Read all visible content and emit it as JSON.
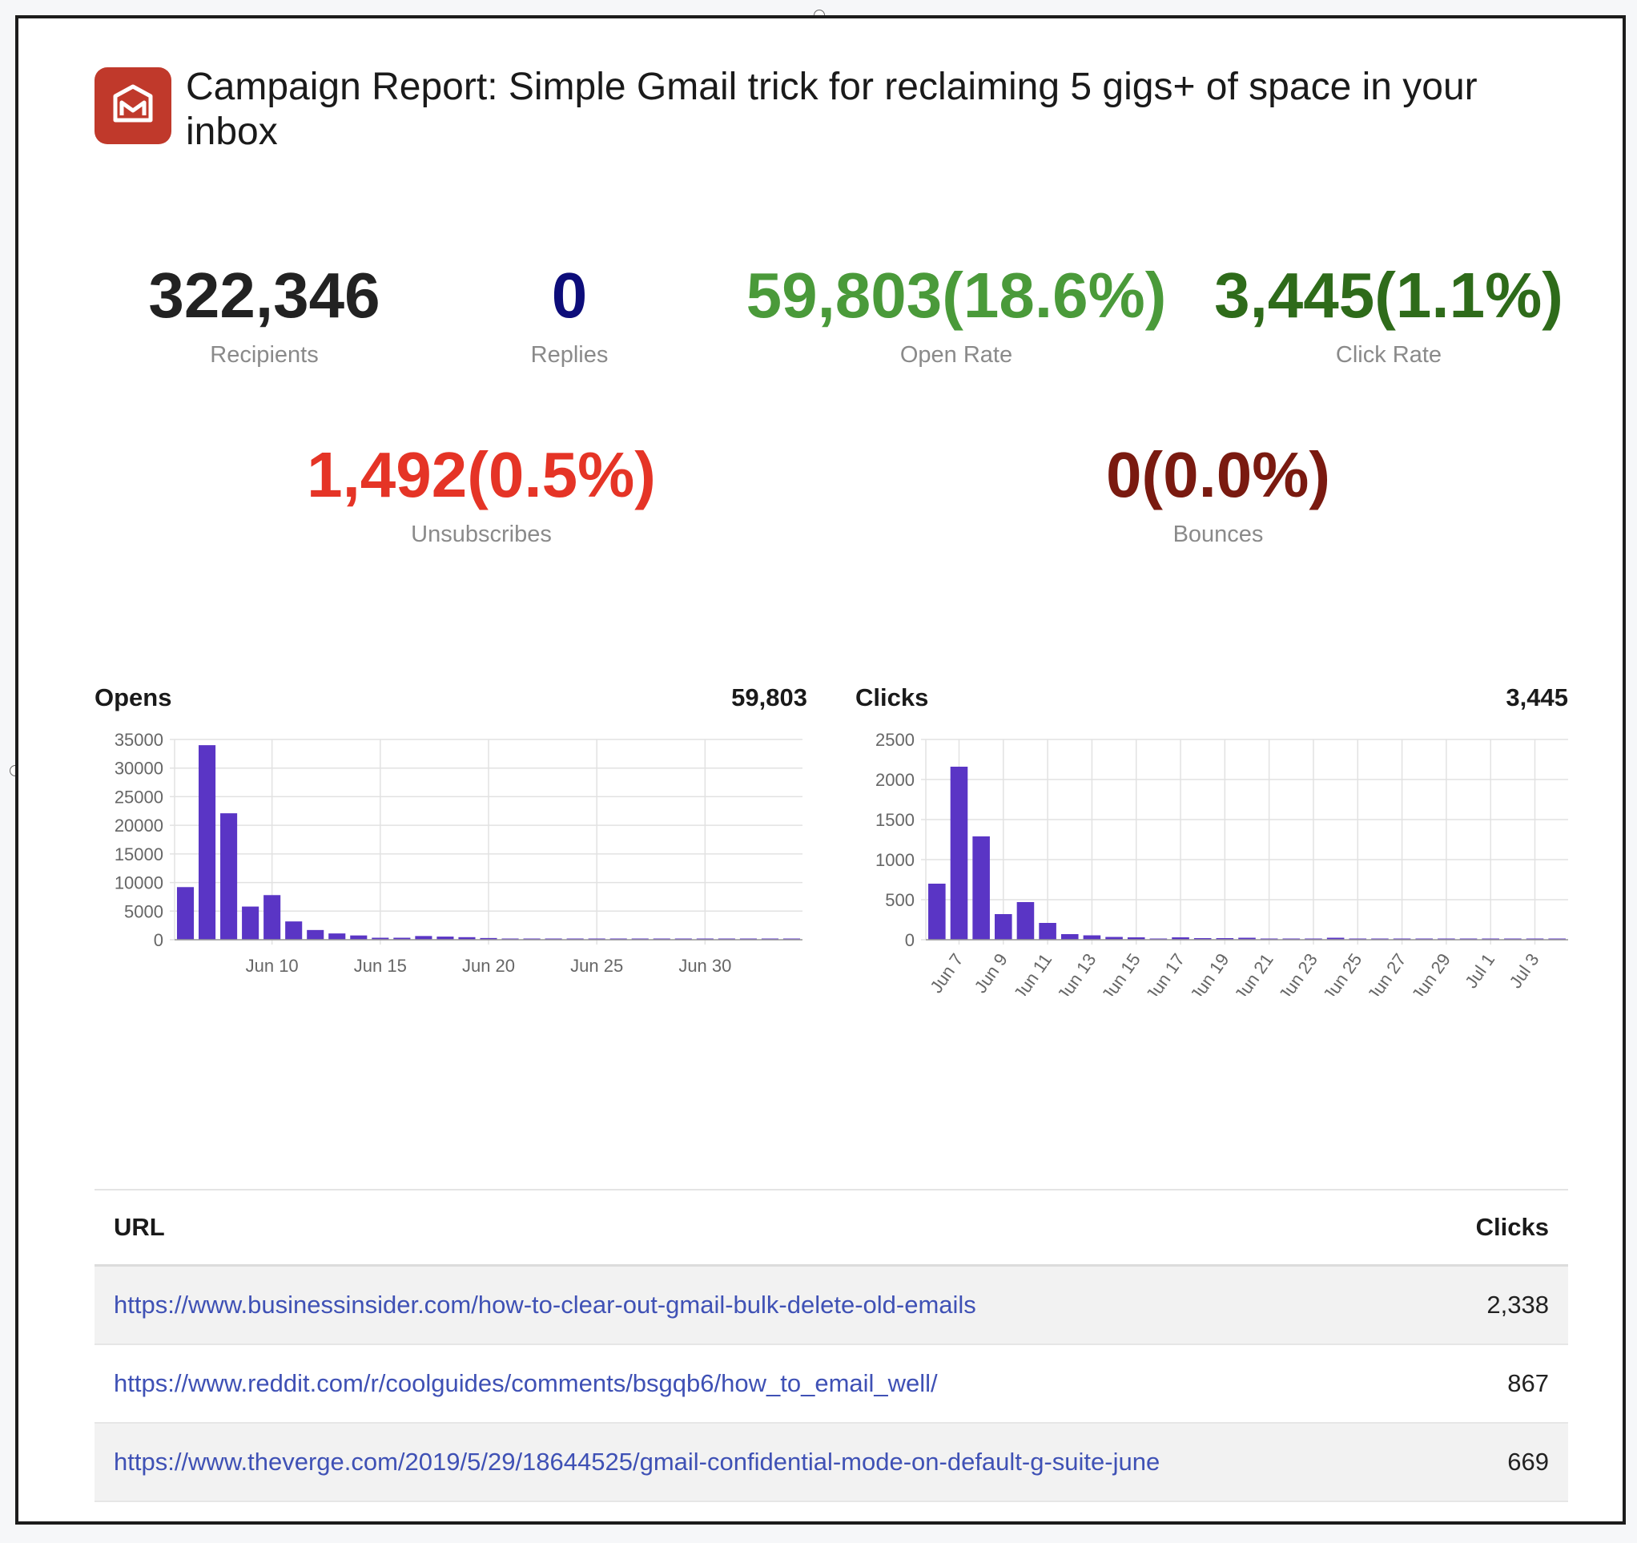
{
  "report": {
    "title": "Campaign Report: Simple Gmail trick for reclaiming 5 gigs+ of space in your inbox",
    "logo_icon": "mailmeteor-logo-icon",
    "brand_color": "#c0392b"
  },
  "stats": {
    "recipients": {
      "value": "322,346",
      "label": "Recipients",
      "color": "#222222"
    },
    "replies": {
      "value": "0",
      "label": "Replies",
      "color": "#0d0d7a"
    },
    "open_rate": {
      "value": "59,803(18.6%)",
      "label": "Open Rate",
      "color": "#4a9a3a"
    },
    "click_rate": {
      "value": "3,445(1.1%)",
      "label": "Click Rate",
      "color": "#2e6b1a"
    },
    "unsubscribes": {
      "value": "1,492(0.5%)",
      "label": "Unsubscribes",
      "color": "#e53426"
    },
    "bounces": {
      "value": "0(0.0%)",
      "label": "Bounces",
      "color": "#7a1a10"
    }
  },
  "opens_panel": {
    "title": "Opens",
    "total": "59,803"
  },
  "clicks_panel": {
    "title": "Clicks",
    "total": "3,445"
  },
  "chart_data": [
    {
      "type": "bar",
      "bar_color": "#5a35c5",
      "x": [
        "Jun 6",
        "Jun 7",
        "Jun 8",
        "Jun 9",
        "Jun 10",
        "Jun 11",
        "Jun 12",
        "Jun 13",
        "Jun 14",
        "Jun 15",
        "Jun 16",
        "Jun 17",
        "Jun 18",
        "Jun 19",
        "Jun 20",
        "Jun 21",
        "Jun 22",
        "Jun 23",
        "Jun 24",
        "Jun 25",
        "Jun 26",
        "Jun 27",
        "Jun 28",
        "Jun 29",
        "Jun 30",
        "Jul 1",
        "Jul 2",
        "Jul 3",
        "Jul 4"
      ],
      "values": [
        9200,
        34000,
        22100,
        5800,
        7800,
        3200,
        1700,
        1100,
        750,
        350,
        350,
        650,
        550,
        450,
        300,
        150,
        100,
        150,
        200,
        150,
        100,
        100,
        50,
        50,
        30,
        80,
        70,
        60,
        40
      ],
      "ylim": [
        0,
        35000
      ],
      "yticks": [
        "35000",
        "30000",
        "25000",
        "20000",
        "15000",
        "10000",
        "5000",
        "0"
      ],
      "xticks": [
        "Jun 10",
        "Jun 15",
        "Jun 20",
        "Jun 25",
        "Jun 30"
      ],
      "grid": true
    },
    {
      "type": "bar",
      "bar_color": "#5a35c5",
      "x": [
        "Jun 6",
        "Jun 7",
        "Jun 8",
        "Jun 9",
        "Jun 10",
        "Jun 11",
        "Jun 12",
        "Jun 13",
        "Jun 14",
        "Jun 15",
        "Jun 16",
        "Jun 17",
        "Jun 18",
        "Jun 19",
        "Jun 20",
        "Jun 21",
        "Jun 22",
        "Jun 23",
        "Jun 24",
        "Jun 25",
        "Jun 26",
        "Jun 27",
        "Jun 28",
        "Jun 29",
        "Jun 30",
        "Jul 1",
        "Jul 2",
        "Jul 3",
        "Jul 4"
      ],
      "values": [
        700,
        2160,
        1290,
        320,
        470,
        210,
        70,
        55,
        35,
        30,
        10,
        30,
        20,
        20,
        25,
        15,
        5,
        10,
        25,
        10,
        10,
        10,
        5,
        5,
        10,
        10,
        5,
        5,
        5
      ],
      "ylim": [
        0,
        2500
      ],
      "yticks": [
        "2500",
        "2000",
        "1500",
        "1000",
        "500",
        "0"
      ],
      "xticks": [
        "Jun 7",
        "Jun 9",
        "Jun 11",
        "Jun 13",
        "Jun 15",
        "Jun 17",
        "Jun 19",
        "Jun 21",
        "Jun 23",
        "Jun 25",
        "Jun 27",
        "Jun 29",
        "Jul 1",
        "Jul 3"
      ],
      "grid": true
    }
  ],
  "table": {
    "headers": {
      "url": "URL",
      "clicks": "Clicks"
    },
    "rows": [
      {
        "url": "https://www.businessinsider.com/how-to-clear-out-gmail-bulk-delete-old-emails",
        "clicks": "2,338"
      },
      {
        "url": "https://www.reddit.com/r/coolguides/comments/bsgqb6/how_to_email_well/",
        "clicks": "867"
      },
      {
        "url": "https://www.theverge.com/2019/5/29/18644525/gmail-confidential-mode-on-default-g-suite-june",
        "clicks": "669"
      }
    ]
  }
}
